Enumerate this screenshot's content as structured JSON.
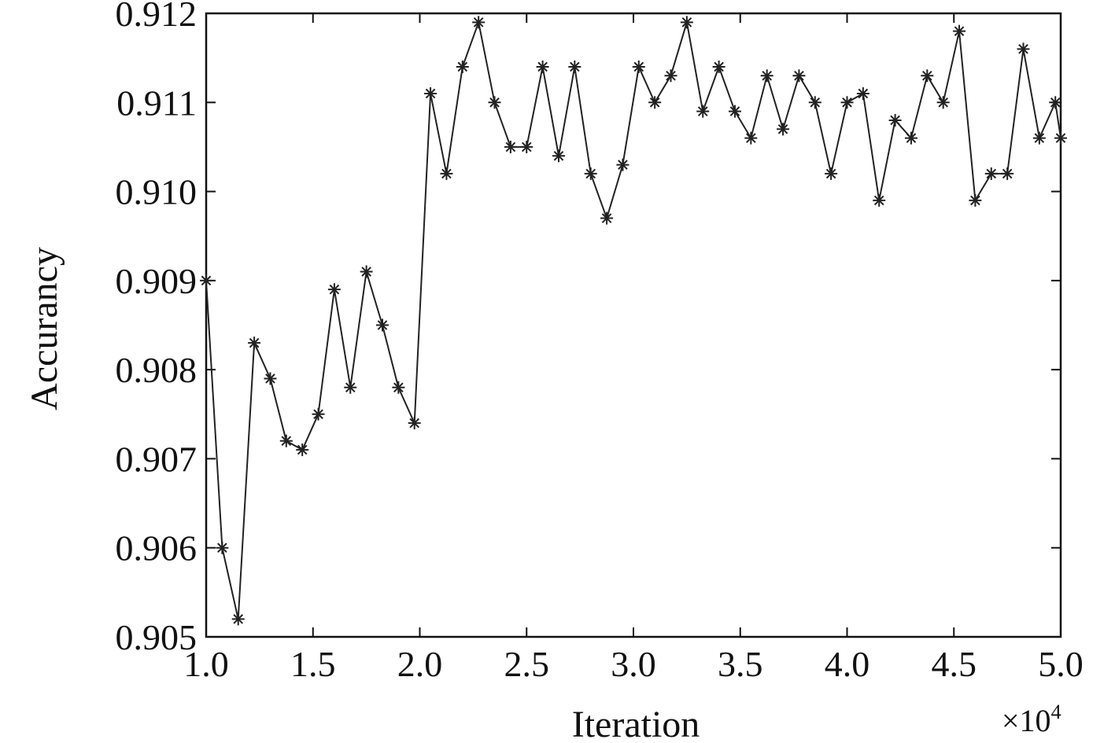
{
  "chart_data": {
    "type": "line",
    "xlabel": "Iteration",
    "ylabel": "Accurancy",
    "x_multiplier": "×10",
    "x_multiplier_exp": "4",
    "xlim": [
      1.0,
      5.0
    ],
    "ylim": [
      0.905,
      0.912
    ],
    "x_ticks": [
      "1.0",
      "1.5",
      "2.0",
      "2.5",
      "3.0",
      "3.5",
      "4.0",
      "4.5",
      "5.0"
    ],
    "y_ticks": [
      "0.905",
      "0.906",
      "0.907",
      "0.908",
      "0.909",
      "0.910",
      "0.911",
      "0.912"
    ],
    "grid": false,
    "marker": "asterisk",
    "series": [
      {
        "x": [
          1.0,
          1.075,
          1.15,
          1.225,
          1.3,
          1.375,
          1.45,
          1.525,
          1.6,
          1.675,
          1.75,
          1.825,
          1.9,
          1.975,
          2.05,
          2.125,
          2.2,
          2.275,
          2.35,
          2.425,
          2.5,
          2.575,
          2.65,
          2.725,
          2.8,
          2.875,
          2.95,
          3.025,
          3.1,
          3.175,
          3.25,
          3.325,
          3.4,
          3.475,
          3.55,
          3.625,
          3.7,
          3.775,
          3.85,
          3.925,
          4.0,
          4.075,
          4.15,
          4.225,
          4.3,
          4.375,
          4.45,
          4.525,
          4.6,
          4.675,
          4.75,
          4.825,
          4.9,
          4.975,
          5.0
        ],
        "values": [
          0.909,
          0.906,
          0.9052,
          0.9083,
          0.9079,
          0.9072,
          0.9071,
          0.9075,
          0.9089,
          0.9078,
          0.9091,
          0.9085,
          0.9078,
          0.9074,
          0.9111,
          0.9102,
          0.9114,
          0.9119,
          0.911,
          0.9105,
          0.9105,
          0.9114,
          0.9104,
          0.9114,
          0.9102,
          0.9097,
          0.9103,
          0.9114,
          0.911,
          0.9113,
          0.9119,
          0.9109,
          0.9114,
          0.9109,
          0.9106,
          0.9113,
          0.9107,
          0.9113,
          0.911,
          0.9102,
          0.911,
          0.9111,
          0.9099,
          0.9108,
          0.9106,
          0.9113,
          0.911,
          0.9118,
          0.9099,
          0.9102,
          0.9102,
          0.9116,
          0.9106,
          0.911,
          0.9106
        ]
      }
    ]
  }
}
